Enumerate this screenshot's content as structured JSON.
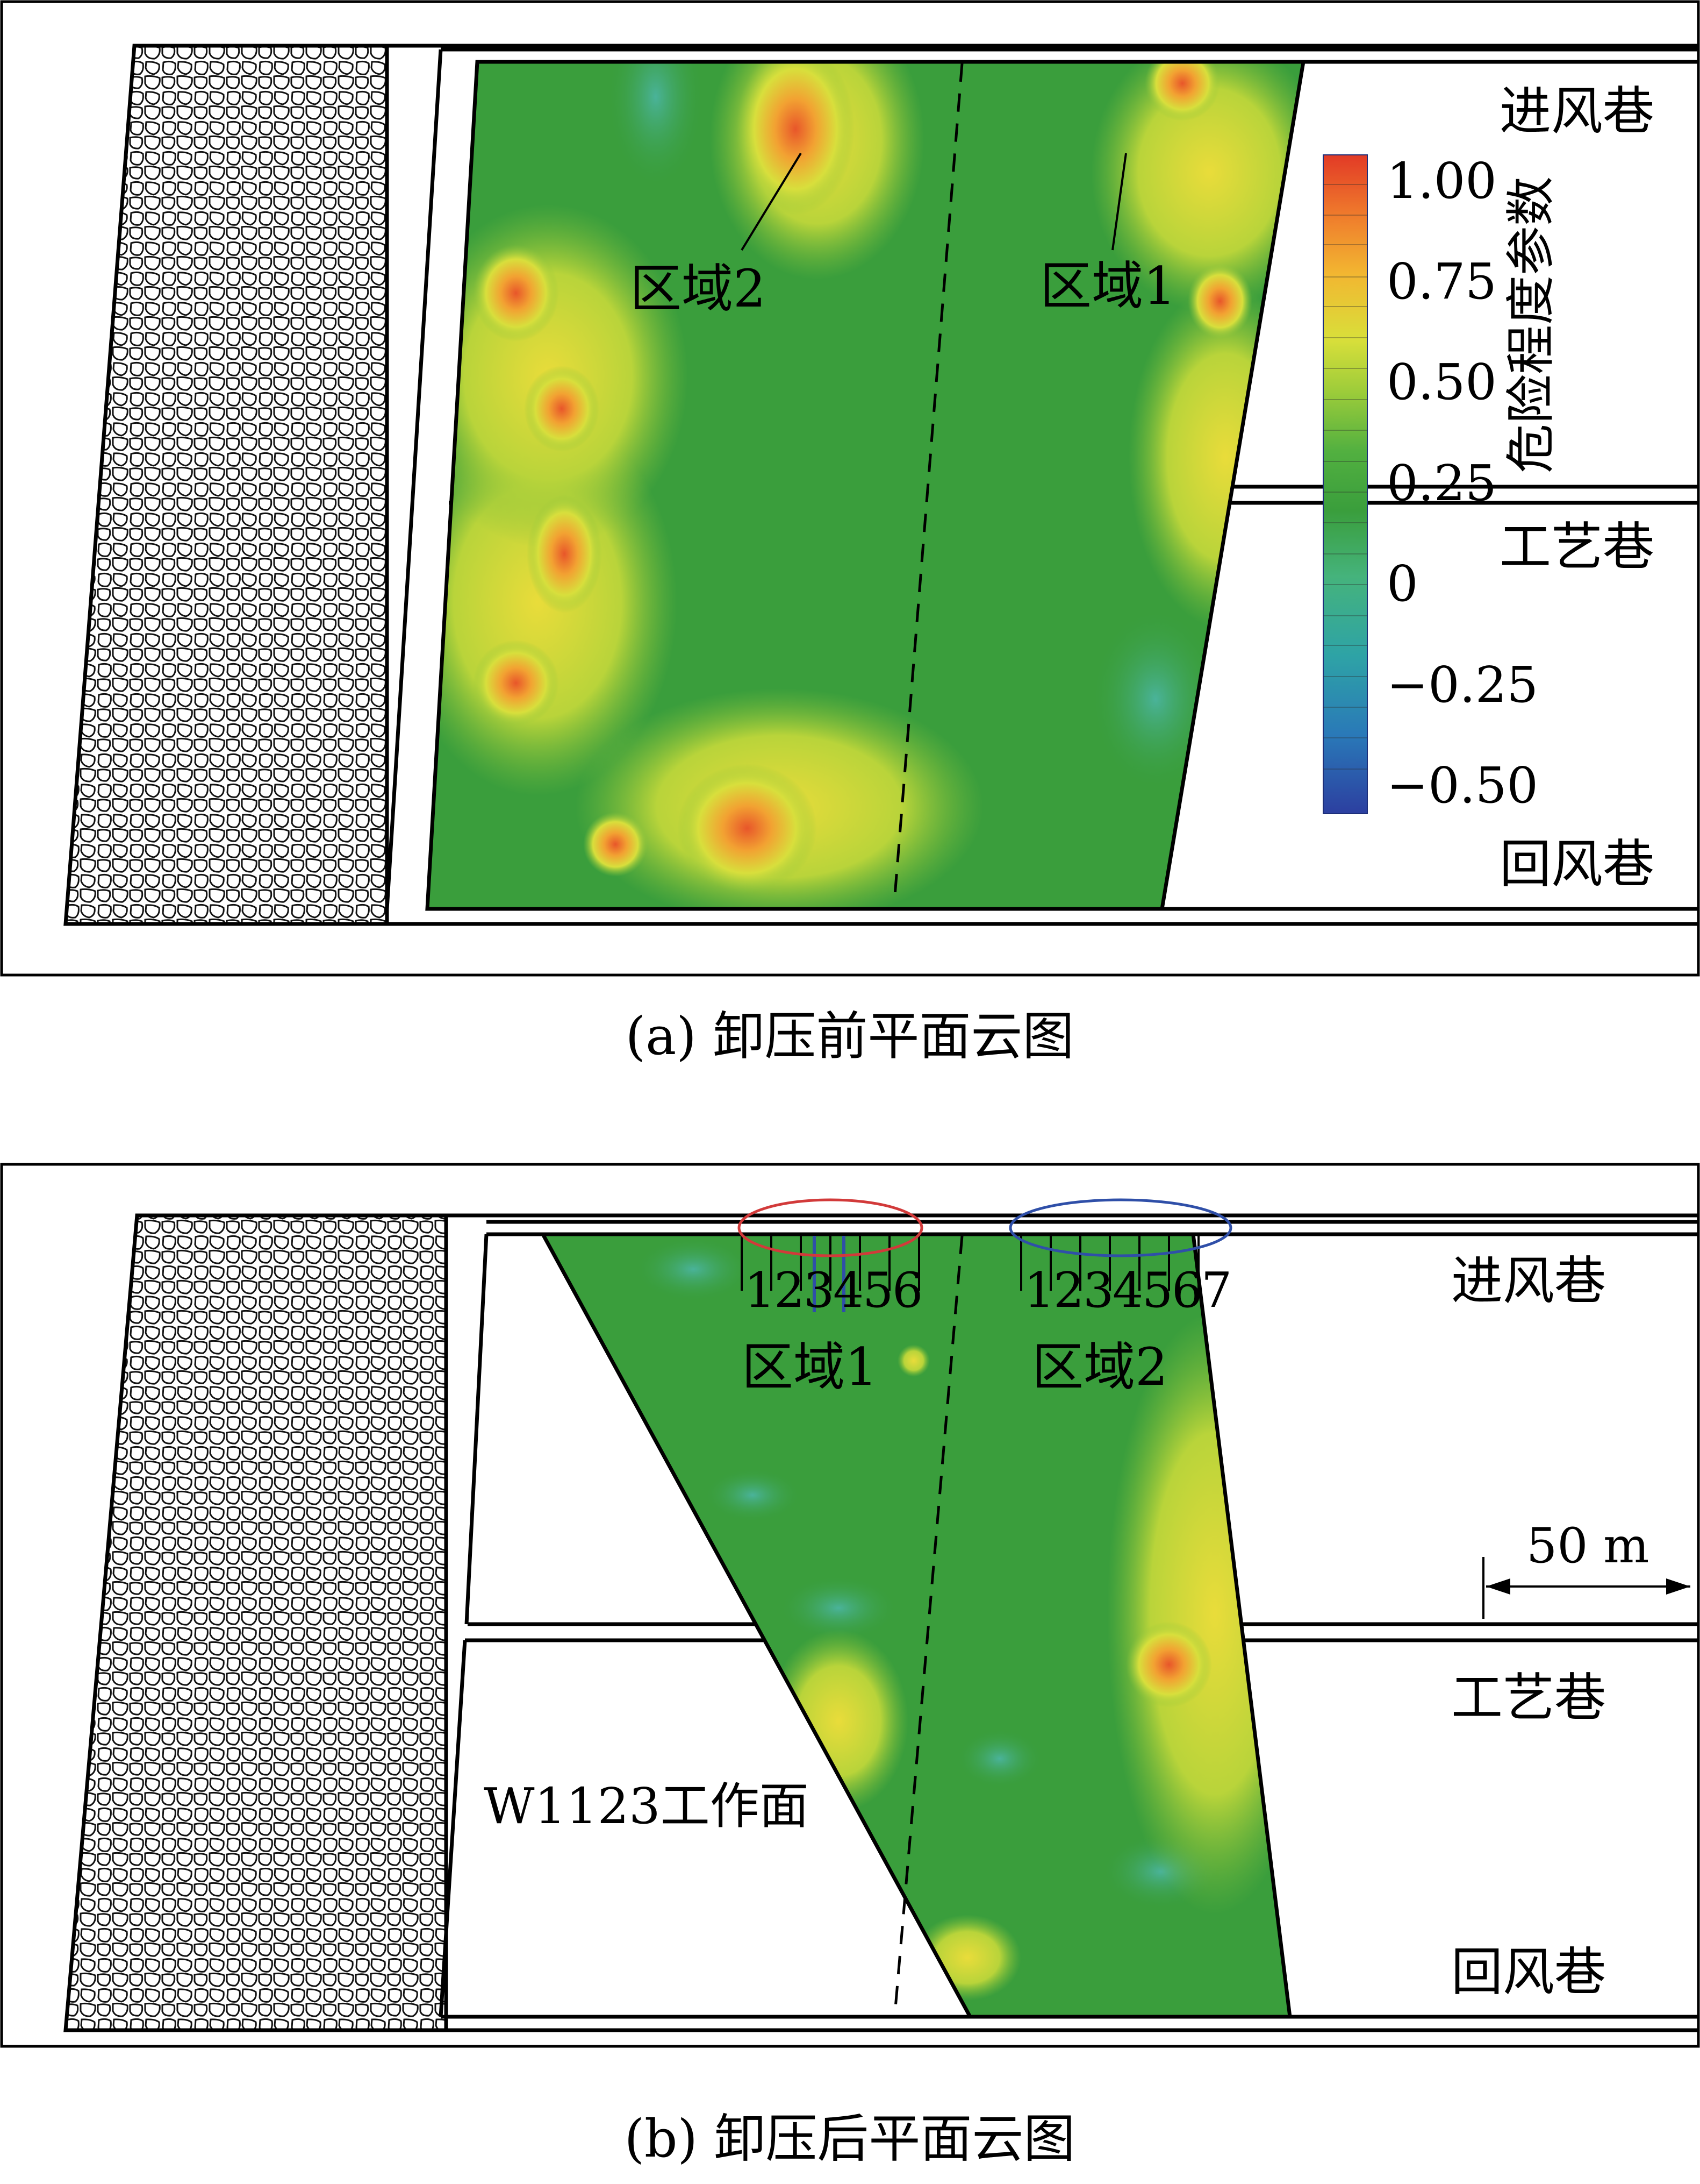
{
  "panel_a": {
    "caption": "(a) 卸压前平面云图",
    "roadways": {
      "intake": "进风巷",
      "process": "工艺巷",
      "return": "回风巷"
    },
    "zones": {
      "zone2": "区域2",
      "zone1": "区域1"
    },
    "legend": {
      "title": "危险程度参数",
      "ticks": [
        "1.00",
        "0.75",
        "0.50",
        "0.25",
        "0",
        "−0.25",
        "−0.50"
      ],
      "colors": [
        "#2c3fa0",
        "#2a79b8",
        "#2ea3a6",
        "#45b37c",
        "#3a9e3c",
        "#52b040",
        "#9ccc3a",
        "#d9df3a",
        "#f2b631",
        "#ef7a2c",
        "#e23a26"
      ]
    }
  },
  "panel_b": {
    "caption": "(b) 卸压后平面云图",
    "roadways": {
      "intake": "进风巷",
      "process": "工艺巷",
      "return": "回风巷"
    },
    "zones": {
      "zone1": "区域1",
      "zone2": "区域2"
    },
    "workface": "W1123工作面",
    "scale": "50 m",
    "zone1_holes": [
      "1",
      "2",
      "3",
      "4",
      "5",
      "6"
    ],
    "zone2_holes": [
      "1",
      "2",
      "3",
      "4",
      "5",
      "6",
      "7"
    ],
    "colors": {
      "zone1_ring": "#d23a3a",
      "zone2_ring": "#2f4fa8"
    }
  }
}
